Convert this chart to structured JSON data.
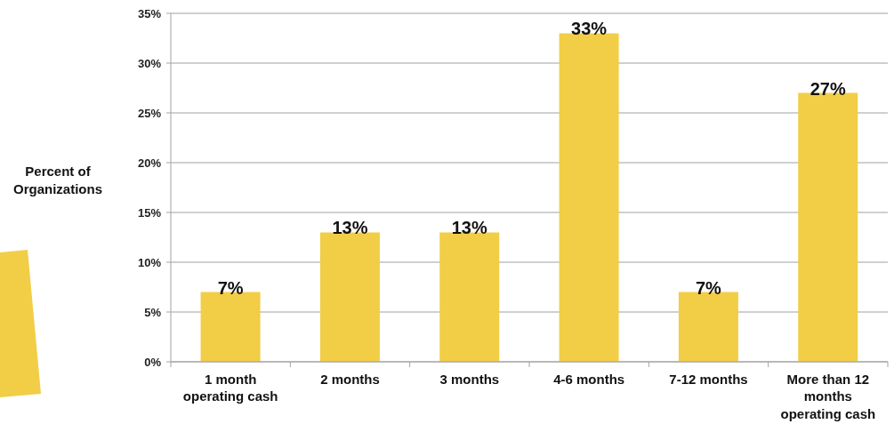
{
  "chart_data": {
    "type": "bar",
    "ylabel": "Percent of Organizations",
    "categories": [
      "1 month operating cash",
      "2 months",
      "3 months",
      "4-6 months",
      "7-12 months",
      "More than 12 months operating cash"
    ],
    "values": [
      7,
      13,
      13,
      33,
      7,
      27
    ],
    "value_labels": [
      "7%",
      "13%",
      "13%",
      "33%",
      "7%",
      "27%"
    ],
    "color": "#f2cd46",
    "ylim": [
      0,
      35
    ],
    "yticks": [
      {
        "value": 0,
        "label": "0%"
      },
      {
        "value": 5,
        "label": "5%"
      },
      {
        "value": 10,
        "label": "10%"
      },
      {
        "value": 15,
        "label": "15%"
      },
      {
        "value": 20,
        "label": "20%"
      },
      {
        "value": 25,
        "label": "25%"
      },
      {
        "value": 30,
        "label": "30%"
      },
      {
        "value": 35,
        "label": "35%"
      }
    ],
    "grid": "y"
  }
}
